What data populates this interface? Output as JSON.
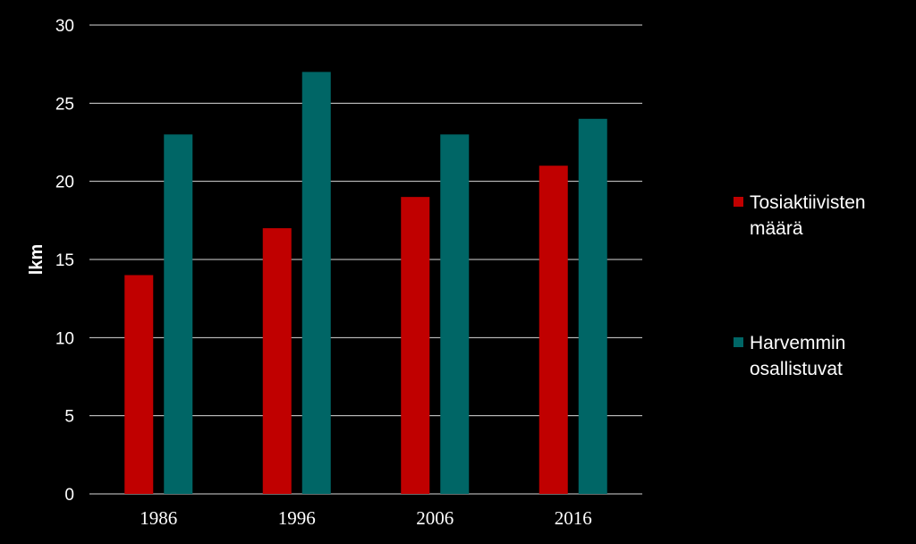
{
  "chart_data": {
    "type": "bar",
    "categories": [
      "1986",
      "1996",
      "2006",
      "2016"
    ],
    "series": [
      {
        "name": "Tosiaktiivisten määrä",
        "legend_lines": [
          "Tosiaktiivisten",
          "määrä"
        ],
        "values": [
          14,
          17,
          19,
          21
        ],
        "color": "#c00000"
      },
      {
        "name": "Harvemmin osallistuvat",
        "legend_lines": [
          "Harvemmin",
          "osallistuvat"
        ],
        "values": [
          23,
          27,
          23,
          24
        ],
        "color": "#006666"
      }
    ],
    "ylabel": "lkm",
    "ylim": [
      0,
      30
    ],
    "yticks": [
      "0",
      "5",
      "10",
      "15",
      "20",
      "25",
      "30"
    ],
    "grid": true,
    "legend_position": "right",
    "background": "#000000",
    "gridline_color": "#d9d9d9"
  }
}
